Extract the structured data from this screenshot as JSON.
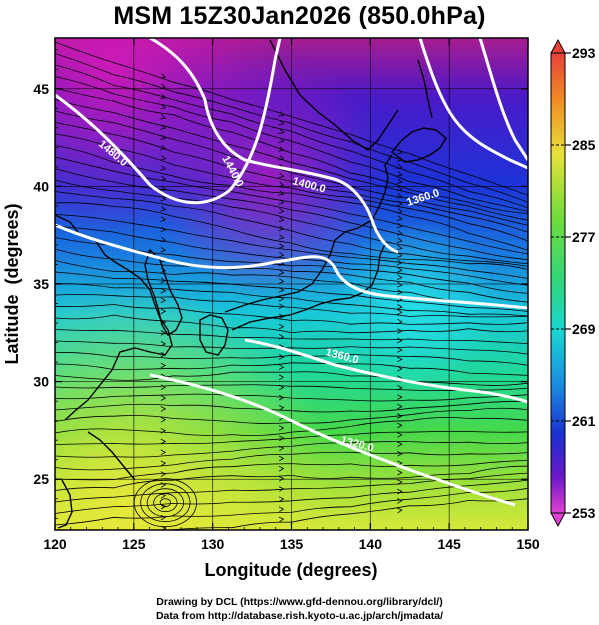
{
  "title": "MSM 15Z30Jan2026 (850.0hPa)",
  "map": {
    "xlabel": "Longitude (degrees)",
    "ylabel": "Latitude  (degrees)",
    "x_ticks": [
      "120",
      "125",
      "130",
      "135",
      "140",
      "145",
      "150"
    ],
    "y_ticks": [
      "25",
      "30",
      "35",
      "40",
      "45"
    ],
    "lon_range": [
      120,
      150
    ],
    "lat_range": [
      22.4,
      47.6
    ],
    "contour_labels": [
      "1480.0",
      "1440.0",
      "1400.0",
      "1360.0",
      "1360.0",
      "1320.0"
    ],
    "shaded_variable_range": [
      253,
      293
    ],
    "contour_color": "#ffffff",
    "streamline_color": "#000000",
    "coastline_color": "#000000"
  },
  "colorbar": {
    "ticks": [
      "293",
      "285",
      "277",
      "269",
      "261",
      "253"
    ],
    "colors_top_to_bottom": [
      "#e8403a",
      "#f08a24",
      "#e7e03a",
      "#6fdc3a",
      "#2fd67e",
      "#19d8d0",
      "#1a8de0",
      "#1a2fd0",
      "#6a18c8",
      "#c81ac0",
      "#e040d0"
    ]
  },
  "credits": {
    "line1": "Drawing by DCL (https://www.gfd-dennou.org/library/dcl/)",
    "line2": "Data from http://database.rish.kyoto-u.ac.jp/arch/jmadata/"
  }
}
